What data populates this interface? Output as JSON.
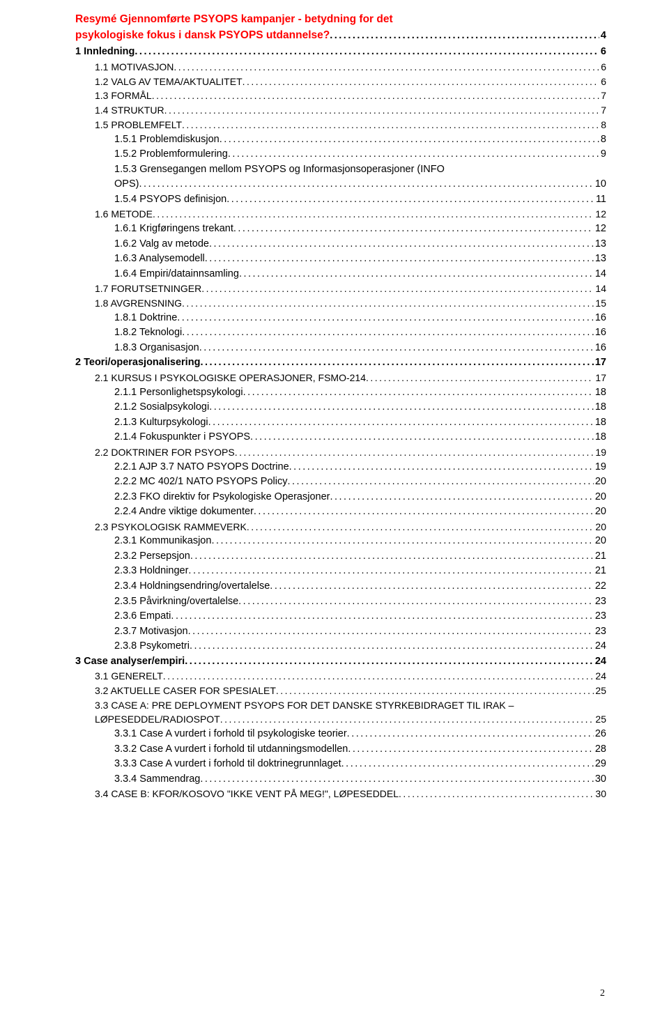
{
  "title_lines": [
    "Resymé Gjennomførte PSYOPS kampanjer - betydning for det",
    "psykologiske fokus i dansk PSYOPS utdannelse?"
  ],
  "title_page": "4",
  "page_number": "2",
  "entries": [
    {
      "lvl": 0,
      "label": "1 Innledning",
      "page": "6"
    },
    {
      "lvl": 1,
      "label": "1.1 MOTIVASJON",
      "page": "6"
    },
    {
      "lvl": 1,
      "label": "1.2 VALG AV TEMA/AKTUALITET",
      "page": "6"
    },
    {
      "lvl": 1,
      "label": "1.3 FORMÅL",
      "page": "7"
    },
    {
      "lvl": 1,
      "label": "1.4 STRUKTUR",
      "page": "7"
    },
    {
      "lvl": 1,
      "label": "1.5 PROBLEMFELT",
      "page": "8"
    },
    {
      "lvl": 2,
      "label": "1.5.1 Problemdiskusjon",
      "page": "8"
    },
    {
      "lvl": 2,
      "label": "1.5.2 Problemformulering",
      "page": "9"
    },
    {
      "lvl": 2,
      "label": "1.5.3 Grensegangen mellom PSYOPS og Informasjonsoperasjoner (INFO OPS)",
      "page": "10",
      "wrap": true
    },
    {
      "lvl": 2,
      "label": "1.5.4 PSYOPS definisjon",
      "page": "11"
    },
    {
      "lvl": 1,
      "label": "1.6 METODE",
      "page": "12"
    },
    {
      "lvl": 2,
      "label": "1.6.1 Krigføringens trekant",
      "page": "12"
    },
    {
      "lvl": 2,
      "label": "1.6.2 Valg av metode",
      "page": "13"
    },
    {
      "lvl": 2,
      "label": "1.6.3 Analysemodell",
      "page": "13"
    },
    {
      "lvl": 2,
      "label": "1.6.4 Empiri/datainnsamling",
      "page": "14"
    },
    {
      "lvl": 1,
      "label": "1.7 FORUTSETNINGER",
      "page": "14"
    },
    {
      "lvl": 1,
      "label": "1.8 AVGRENSNING",
      "page": "15"
    },
    {
      "lvl": 2,
      "label": "1.8.1 Doktrine",
      "page": "16"
    },
    {
      "lvl": 2,
      "label": "1.8.2 Teknologi",
      "page": "16"
    },
    {
      "lvl": 2,
      "label": "1.8.3 Organisasjon",
      "page": "16"
    },
    {
      "lvl": 0,
      "label": "2 Teori/operasjonalisering",
      "page": "17"
    },
    {
      "lvl": 1,
      "label": "2.1 KURSUS I PSYKOLOGISKE OPERASJONER, FSMO-214",
      "page": "17"
    },
    {
      "lvl": 2,
      "label": "2.1.1 Personlighetspsykologi",
      "page": "18"
    },
    {
      "lvl": 2,
      "label": "2.1.2 Sosialpsykologi",
      "page": "18"
    },
    {
      "lvl": 2,
      "label": "2.1.3 Kulturpsykologi",
      "page": "18"
    },
    {
      "lvl": 2,
      "label": "2.1.4 Fokuspunkter i PSYOPS",
      "page": "18"
    },
    {
      "lvl": 1,
      "label": "2.2 DOKTRINER FOR PSYOPS",
      "page": "19"
    },
    {
      "lvl": 2,
      "label": "2.2.1 AJP 3.7 NATO PSYOPS Doctrine",
      "page": "19"
    },
    {
      "lvl": 2,
      "label": "2.2.2 MC 402/1 NATO PSYOPS Policy",
      "page": "20"
    },
    {
      "lvl": 2,
      "label": "2.2.3 FKO direktiv for Psykologiske Operasjoner",
      "page": "20"
    },
    {
      "lvl": 2,
      "label": "2.2.4 Andre viktige dokumenter",
      "page": "20"
    },
    {
      "lvl": 1,
      "label": "2.3 PSYKOLOGISK RAMMEVERK",
      "page": "20"
    },
    {
      "lvl": 2,
      "label": "2.3.1 Kommunikasjon",
      "page": "20"
    },
    {
      "lvl": 2,
      "label": "2.3.2 Persepsjon",
      "page": "21"
    },
    {
      "lvl": 2,
      "label": "2.3.3 Holdninger",
      "page": "21"
    },
    {
      "lvl": 2,
      "label": "2.3.4 Holdningsendring/overtalelse",
      "page": "22"
    },
    {
      "lvl": 2,
      "label": "2.3.5 Påvirkning/overtalelse",
      "page": "23"
    },
    {
      "lvl": 2,
      "label": "2.3.6 Empati",
      "page": "23"
    },
    {
      "lvl": 2,
      "label": "2.3.7 Motivasjon",
      "page": "23"
    },
    {
      "lvl": 2,
      "label": "2.3.8 Psykometri",
      "page": "24"
    },
    {
      "lvl": 0,
      "label": "3 Case analyser/empiri",
      "page": "24"
    },
    {
      "lvl": 1,
      "label": "3.1 GENERELT",
      "page": "24"
    },
    {
      "lvl": 1,
      "label": "3.2 AKTUELLE CASER FOR SPESIALET",
      "page": "25"
    },
    {
      "lvl": 1,
      "label": "3.3 CASE A: PRE DEPLOYMENT PSYOPS FOR DET DANSKE STYRKEBIDRAGET TIL IRAK – LØPESEDDEL/RADIOSPOT",
      "page": "25",
      "wrap": true
    },
    {
      "lvl": 2,
      "label": "3.3.1 Case A vurdert i forhold til psykologiske teorier",
      "page": "26"
    },
    {
      "lvl": 2,
      "label": "3.3.2 Case A vurdert i forhold til utdanningsmodellen",
      "page": "28"
    },
    {
      "lvl": 2,
      "label": "3.3.3 Case A vurdert i forhold til doktrinegrunnlaget",
      "page": "29"
    },
    {
      "lvl": 2,
      "label": "3.3.4 Sammendrag",
      "page": "30"
    },
    {
      "lvl": 1,
      "label": "3.4 CASE B: KFOR/KOSOVO \"IKKE VENT PÅ MEG!\", LØPESEDDEL",
      "page": "30"
    }
  ]
}
